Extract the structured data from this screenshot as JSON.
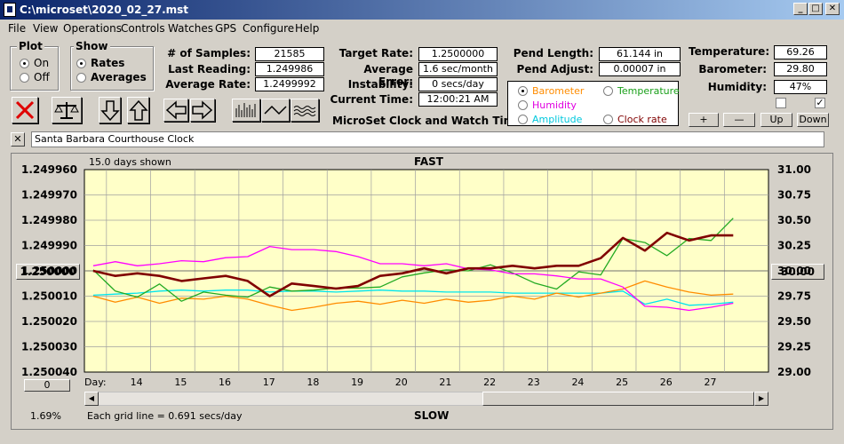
{
  "window": {
    "title": "C:\\microset\\2020_02_27.mst"
  },
  "menu": [
    "File",
    "View",
    "Operations",
    "Controls",
    "Watches",
    "GPS",
    "Configure",
    "Help"
  ],
  "plot_group": {
    "label": "Plot",
    "options": [
      "On",
      "Off"
    ],
    "selected": "On"
  },
  "show_group": {
    "label": "Show",
    "options": [
      "Rates",
      "Averages"
    ],
    "selected": "Rates"
  },
  "stats": {
    "samples_label": "# of Samples:",
    "samples": "21585",
    "last_label": "Last Reading:",
    "last": "1.249986",
    "avg_label": "Average Rate:",
    "avg": "1.2499992",
    "target_label": "Target Rate:",
    "target": "1.2500000",
    "avgerr_label": "Average Error:",
    "avgerr": "1.6 sec/month",
    "instab_label": "Instability:",
    "instab": "0 secs/day",
    "time_label": "Current Time:",
    "time": "12:00:21 AM",
    "pendlen_label": "Pend Length:",
    "pendlen": "61.144 in",
    "pendadj_label": "Pend Adjust:",
    "pendadj": "0.00007 in",
    "temp_label": "Temperature:",
    "temp": "69.26",
    "baro_label": "Barometer:",
    "baro": "29.80",
    "hum_label": "Humidity:",
    "hum": "47%"
  },
  "app_caption": "MicroSet Clock and Watch Timer",
  "sensor_select": {
    "options": [
      "Barometer",
      "Temperature",
      "Humidity",
      "Amplitude",
      "Clock rate"
    ],
    "selected": "Barometer"
  },
  "small_buttons": [
    "+",
    "—",
    "Up",
    "Down"
  ],
  "checkbox_states": [
    false,
    true
  ],
  "clock_name": "Santa Barbara Courthouse Clock",
  "chart_header": {
    "days_shown": "15.0 days shown",
    "top": "FAST",
    "bottom": "SLOW",
    "grid_note": "Each grid line = 0.691 secs/day",
    "zoom": "1.69%",
    "day_label": "Day:",
    "left_box": "1.250000",
    "right_box": "30.00",
    "left_zero": "0"
  },
  "colors": {
    "plot_bg": "#ffffc8",
    "grid": "#a0a0a0",
    "rate": "#800000",
    "barometer": "#ff8c00",
    "temperature": "#22aa22",
    "humidity": "#ff00ff",
    "amplitude": "#00e5ee"
  },
  "chart_data": {
    "type": "line",
    "x_label": "Day:",
    "x_ticks": [
      "14",
      "15",
      "16",
      "17",
      "18",
      "19",
      "20",
      "21",
      "22",
      "23",
      "24",
      "25",
      "26",
      "27"
    ],
    "x": [
      13.2,
      13.7,
      14.2,
      14.7,
      15.2,
      15.7,
      16.2,
      16.7,
      17.2,
      17.7,
      18.2,
      18.7,
      19.2,
      19.7,
      20.2,
      20.7,
      21.2,
      21.7,
      22.2,
      22.7,
      23.2,
      23.7,
      24.2,
      24.7,
      25.2,
      25.7,
      26.2,
      26.7,
      27.2,
      27.7
    ],
    "y_left_ticks": [
      "1.249960",
      "1.249970",
      "1.249980",
      "1.249990",
      "1.250000",
      "1.250010",
      "1.250020",
      "1.250030",
      "1.250040"
    ],
    "y_left_range": [
      1.24996,
      1.25004
    ],
    "y_right_ticks": [
      "31.00",
      "30.75",
      "30.50",
      "30.25",
      "30.00",
      "29.75",
      "29.50",
      "29.25",
      "29.00"
    ],
    "y_right_range": [
      29.0,
      31.0
    ],
    "series": [
      {
        "values": [
          1.25,
          1.250002,
          1.250001,
          1.250002,
          1.250004,
          1.250003,
          1.250002,
          1.250004,
          1.25001,
          1.250005,
          1.250006,
          1.250007,
          1.250006,
          1.250002,
          1.250001,
          1.249999,
          1.250001,
          1.249999,
          1.249999,
          1.249998,
          1.249999,
          1.249998,
          1.249998,
          1.249995,
          1.249987,
          1.249992,
          1.249985,
          1.249988,
          1.249986,
          1.249986
        ]
      },
      {
        "values": [
          29.75,
          29.69,
          29.74,
          29.68,
          29.73,
          29.72,
          29.75,
          29.72,
          29.66,
          29.61,
          29.64,
          29.68,
          29.7,
          29.67,
          29.71,
          29.68,
          29.72,
          29.69,
          29.71,
          29.75,
          29.72,
          29.78,
          29.74,
          29.78,
          29.82,
          29.9,
          29.84,
          29.79,
          29.76,
          29.77
        ]
      },
      {
        "values": [
          30.01,
          29.8,
          29.74,
          29.87,
          29.7,
          29.79,
          29.76,
          29.74,
          29.84,
          29.8,
          29.81,
          29.83,
          29.83,
          29.84,
          29.94,
          29.98,
          30.01,
          30.0,
          30.06,
          29.98,
          29.88,
          29.82,
          29.99,
          29.96,
          30.32,
          30.28,
          30.15,
          30.32,
          30.3,
          30.52
        ]
      },
      {
        "values": [
          30.05,
          30.09,
          30.05,
          30.07,
          30.1,
          30.09,
          30.13,
          30.14,
          30.24,
          30.21,
          30.21,
          30.19,
          30.14,
          30.07,
          30.07,
          30.05,
          30.07,
          30.02,
          30.01,
          29.97,
          29.97,
          29.95,
          29.92,
          29.92,
          29.84,
          29.65,
          29.64,
          29.61,
          29.64,
          29.68
        ]
      },
      {
        "values": [
          29.76,
          29.77,
          29.78,
          29.8,
          29.81,
          29.8,
          29.81,
          29.81,
          29.79,
          29.8,
          29.8,
          29.79,
          29.8,
          29.81,
          29.8,
          29.8,
          29.79,
          29.79,
          29.79,
          29.78,
          29.78,
          29.78,
          29.78,
          29.78,
          29.8,
          29.67,
          29.72,
          29.66,
          29.67,
          29.69
        ]
      }
    ]
  }
}
